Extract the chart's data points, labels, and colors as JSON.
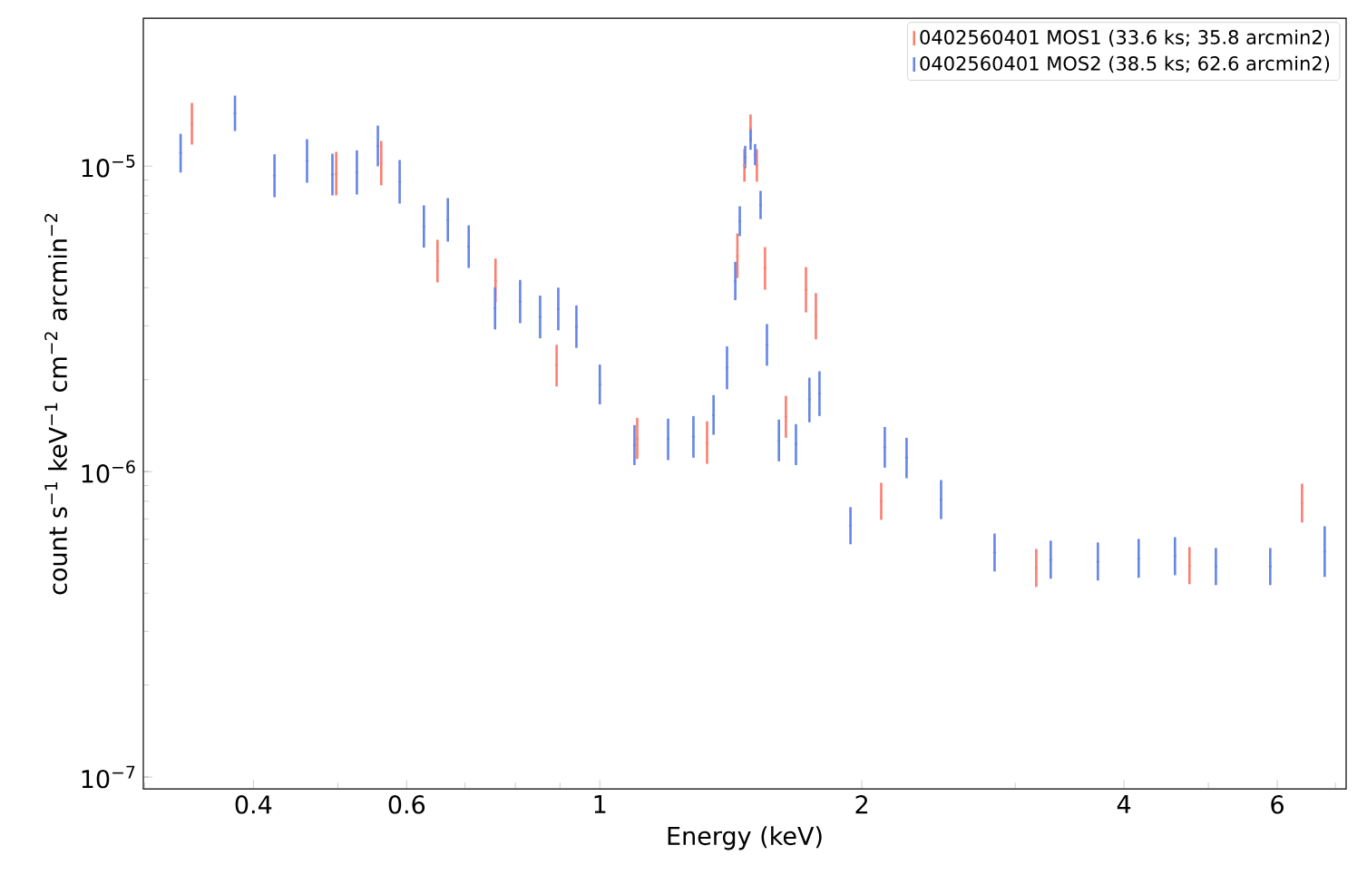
{
  "chart_data": {
    "type": "scatter",
    "xlabel": "Energy (keV)",
    "ylabel": "count s$^{−1}$ keV$^{−1}$ cm$^{−2}$ arcmin$^{−2}$",
    "log": "xy",
    "legend": "top right",
    "xlim": [
      0.299,
      7.2
    ],
    "ylim": [
      9.15e-08,
      3.05e-05
    ],
    "xticks": [
      {
        "value": 0.3,
        "label": null
      },
      {
        "value": 0.4,
        "label": "0.4"
      },
      {
        "value": 0.5,
        "label": null
      },
      {
        "value": 0.6,
        "label": "0.6"
      },
      {
        "value": 0.7,
        "label": null
      },
      {
        "value": 0.8,
        "label": null
      },
      {
        "value": 0.9,
        "label": null
      },
      {
        "value": 1,
        "label": "1"
      },
      {
        "value": 2,
        "label": "2"
      },
      {
        "value": 3,
        "label": null
      },
      {
        "value": 4,
        "label": "4"
      },
      {
        "value": 5,
        "label": null
      },
      {
        "value": 6,
        "label": "6"
      },
      {
        "value": 7,
        "label": null
      }
    ],
    "yticks": [
      {
        "value": 1e-07,
        "label": "10$^{−7}$"
      },
      {
        "value": 1e-06,
        "label": "10$^{−6}$"
      },
      {
        "value": 1e-05,
        "label": "10$^{−5}$"
      }
    ],
    "series": [
      {
        "name": "0402560401 MOS1 (33.6 ks; 35.8 arcmin2)",
        "color": "#fa8072",
        "x": [
          0.34,
          0.423,
          0.498,
          0.561,
          0.651,
          0.759,
          0.892,
          1.104,
          1.328,
          1.439,
          1.466,
          1.49,
          1.515,
          1.548,
          1.636,
          1.725,
          1.771,
          2.105,
          3.172,
          4.757,
          6.407
        ],
        "values": [
          1.376e-05,
          null,
          9.45e-06,
          1.022e-05,
          4.89e-06,
          4.22e-06,
          2.23e-06,
          1.28e-06,
          1.24e-06,
          5.08e-06,
          1.005e-05,
          1.329e-05,
          1.005e-05,
          4.63e-06,
          1.51e-06,
          3.94e-06,
          3.22e-06,
          7.99e-07,
          4.84e-07,
          4.92e-07,
          7.88e-07
        ],
        "errors": [
          [
            1.176e-05,
            1.61e-05
          ],
          null,
          [
            8.02e-06,
            1.113e-05
          ],
          [
            8.65e-06,
            1.208e-05
          ],
          [
            4.16e-06,
            5.74e-06
          ],
          [
            3.58e-06,
            4.98e-06
          ],
          [
            1.9e-06,
            2.6e-06
          ],
          [
            1.1e-06,
            1.5e-06
          ],
          [
            1.06e-06,
            1.46e-06
          ],
          [
            4.3e-06,
            6.02e-06
          ],
          [
            8.89e-06,
            1.136e-05
          ],
          [
            1.197e-05,
            1.476e-05
          ],
          [
            8.89e-06,
            1.136e-05
          ],
          [
            3.94e-06,
            5.43e-06
          ],
          [
            1.29e-06,
            1.77e-06
          ],
          [
            3.32e-06,
            4.67e-06
          ],
          [
            2.71e-06,
            3.84e-06
          ],
          [
            6.95e-07,
            9.19e-07
          ],
          [
            4.19e-07,
            5.58e-07
          ],
          [
            4.28e-07,
            5.66e-07
          ],
          [
            6.81e-07,
            9.13e-07
          ]
        ]
      },
      {
        "name": "0402560401 MOS2 (38.5 ks; 62.6 arcmin2)",
        "color": "#6686e6",
        "x": [
          0.33,
          0.381,
          0.423,
          0.461,
          0.493,
          0.526,
          0.556,
          0.589,
          0.628,
          0.669,
          0.707,
          0.758,
          0.81,
          0.854,
          0.896,
          0.94,
          1.0,
          1.096,
          1.198,
          1.281,
          1.351,
          1.4,
          1.431,
          1.448,
          1.469,
          1.49,
          1.508,
          1.53,
          1.556,
          1.606,
          1.68,
          1.741,
          1.788,
          1.941,
          2.125,
          2.251,
          2.466,
          2.841,
          3.296,
          3.734,
          4.159,
          4.578,
          5.101,
          5.89,
          6.802
        ],
        "values": [
          1.103e-05,
          1.489e-05,
          9.3e-06,
          1.04e-05,
          9.38e-06,
          9.53e-06,
          1.164e-05,
          8.89e-06,
          6.34e-06,
          6.67e-06,
          5.45e-06,
          3.42e-06,
          3.6e-06,
          3.21e-06,
          3.4e-06,
          2.98e-06,
          1.93e-06,
          1.22e-06,
          1.28e-06,
          1.3e-06,
          1.53e-06,
          2.19e-06,
          4.2e-06,
          6.6e-06,
          1.071e-05,
          1.222e-05,
          1.09e-05,
          7.46e-06,
          2.6e-06,
          1.26e-06,
          1.23e-06,
          1.72e-06,
          1.8e-06,
          6.65e-07,
          1.2e-06,
          1.11e-06,
          8.1e-07,
          5.43e-07,
          5.14e-07,
          5.07e-07,
          5.19e-07,
          5.28e-07,
          4.89e-07,
          4.89e-07,
          5.47e-07
        ],
        "errors": [
          [
            9.53e-06,
            1.276e-05
          ],
          [
            1.303e-05,
            1.701e-05
          ],
          [
            7.91e-06,
            1.093e-05
          ],
          [
            8.82e-06,
            1.225e-05
          ],
          [
            8.02e-06,
            1.098e-05
          ],
          [
            8.07e-06,
            1.126e-05
          ],
          [
            9.98e-06,
            1.357e-05
          ],
          [
            7.54e-06,
            1.047e-05
          ],
          [
            5.41e-06,
            7.44e-06
          ],
          [
            5.66e-06,
            7.86e-06
          ],
          [
            4.64e-06,
            6.4e-06
          ],
          [
            2.92e-06,
            4.01e-06
          ],
          [
            3.06e-06,
            4.24e-06
          ],
          [
            2.73e-06,
            3.77e-06
          ],
          [
            2.9e-06,
            4e-06
          ],
          [
            2.54e-06,
            3.5e-06
          ],
          [
            1.66e-06,
            2.24e-06
          ],
          [
            1.05e-06,
            1.42e-06
          ],
          [
            1.09e-06,
            1.49e-06
          ],
          [
            1.11e-06,
            1.52e-06
          ],
          [
            1.32e-06,
            1.78e-06
          ],
          [
            1.86e-06,
            2.57e-06
          ],
          [
            3.64e-06,
            4.86e-06
          ],
          [
            5.9e-06,
            7.39e-06
          ],
          [
            9.84e-06,
            1.165e-05
          ],
          [
            1.131e-05,
            1.321e-05
          ],
          [
            1.007e-05,
            1.181e-05
          ],
          [
            6.71e-06,
            8.3e-06
          ],
          [
            2.22e-06,
            3.04e-06
          ],
          [
            1.08e-06,
            1.48e-06
          ],
          [
            1.05e-06,
            1.43e-06
          ],
          [
            1.45e-06,
            2.03e-06
          ],
          [
            1.52e-06,
            2.13e-06
          ],
          [
            5.78e-07,
            7.65e-07
          ],
          [
            1.03e-06,
            1.4e-06
          ],
          [
            9.51e-07,
            1.29e-06
          ],
          [
            6.99e-07,
            9.38e-07
          ],
          [
            4.71e-07,
            6.27e-07
          ],
          [
            4.46e-07,
            5.94e-07
          ],
          [
            4.4e-07,
            5.86e-07
          ],
          [
            4.49e-07,
            6.02e-07
          ],
          [
            4.58e-07,
            6.1e-07
          ],
          [
            4.25e-07,
            5.62e-07
          ],
          [
            4.25e-07,
            5.62e-07
          ],
          [
            4.52e-07,
            6.62e-07
          ]
        ]
      }
    ]
  }
}
